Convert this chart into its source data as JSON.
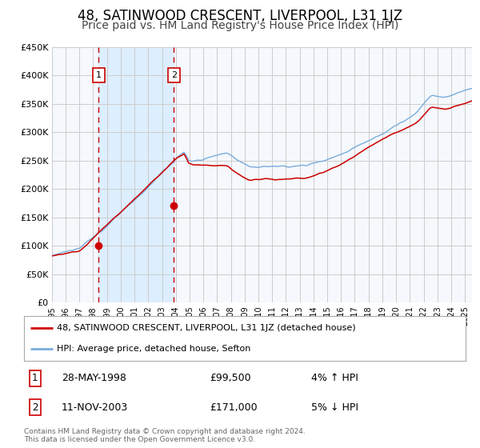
{
  "title": "48, SATINWOOD CRESCENT, LIVERPOOL, L31 1JZ",
  "subtitle": "Price paid vs. HM Land Registry's House Price Index (HPI)",
  "title_fontsize": 12,
  "subtitle_fontsize": 10,
  "xmin": 1995.0,
  "xmax": 2025.5,
  "ymin": 0,
  "ymax": 450000,
  "yticks": [
    0,
    50000,
    100000,
    150000,
    200000,
    250000,
    300000,
    350000,
    400000,
    450000
  ],
  "ytick_labels": [
    "£0",
    "£50K",
    "£100K",
    "£150K",
    "£200K",
    "£250K",
    "£300K",
    "£350K",
    "£400K",
    "£450K"
  ],
  "xtick_years": [
    1995,
    1996,
    1997,
    1998,
    1999,
    2000,
    2001,
    2002,
    2003,
    2004,
    2005,
    2006,
    2007,
    2008,
    2009,
    2010,
    2011,
    2012,
    2013,
    2014,
    2015,
    2016,
    2017,
    2018,
    2019,
    2020,
    2021,
    2022,
    2023,
    2024,
    2025
  ],
  "line_red_color": "#cc0000",
  "line_blue_color": "#7aaddc",
  "marker_color": "#cc0000",
  "dashed_line_color": "#cc0000",
  "shade_color": "#ddeeff",
  "grid_color": "#cccccc",
  "bg_color": "#f5f8fc",
  "point1_x": 1998.41,
  "point1_y": 99500,
  "point2_x": 2003.87,
  "point2_y": 171000,
  "label1_date": "28-MAY-1998",
  "label1_price": "£99,500",
  "label1_hpi": "4% ↑ HPI",
  "label2_date": "11-NOV-2003",
  "label2_price": "£171,000",
  "label2_hpi": "5% ↓ HPI",
  "legend_red_label": "48, SATINWOOD CRESCENT, LIVERPOOL, L31 1JZ (detached house)",
  "legend_blue_label": "HPI: Average price, detached house, Sefton",
  "footer_text": "Contains HM Land Registry data © Crown copyright and database right 2024.\nThis data is licensed under the Open Government Licence v3.0.",
  "background_color": "#ffffff"
}
